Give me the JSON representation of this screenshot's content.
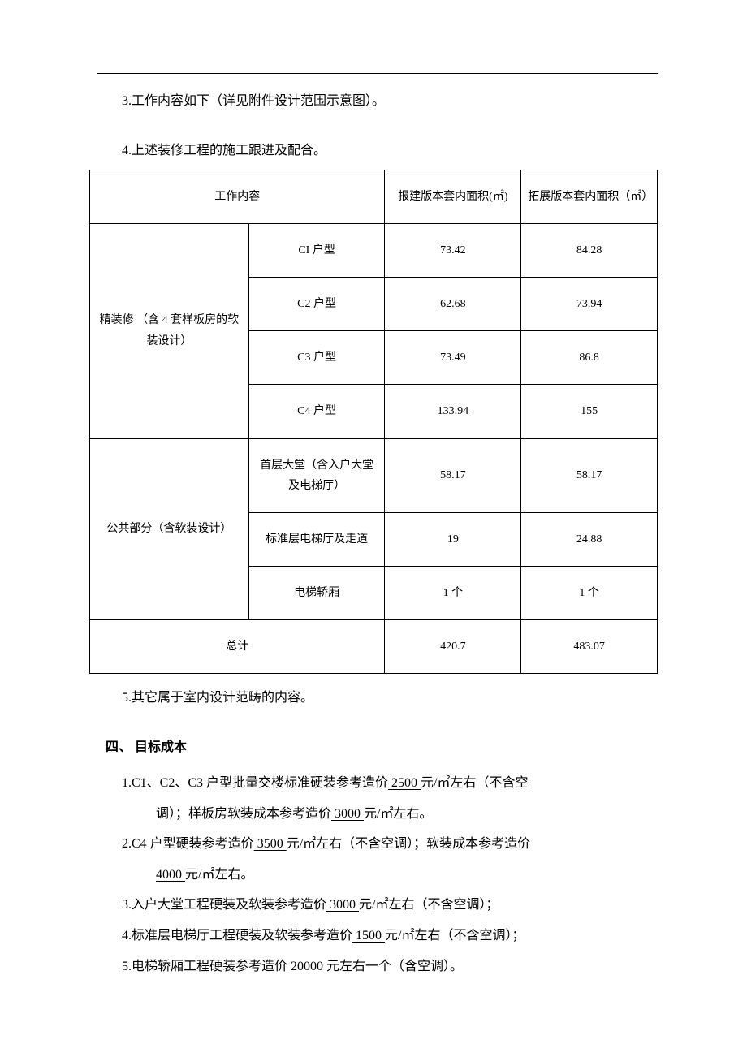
{
  "para1": "3.工作内容如下（详见附件设计范围示意图）。",
  "para2": "4.上述装修工程的施工跟进及配合。",
  "table": {
    "headers": {
      "work_content": "工作内容",
      "reported_area": "报建版本套内面积(㎡)",
      "expanded_area": "拓展版本套内面积（㎡）"
    },
    "group1_label": "精装修 （含 4 套样板房的软装设计）",
    "group1": [
      {
        "name": "CI 户型",
        "reported": "73.42",
        "expanded": "84.28"
      },
      {
        "name": "C2 户型",
        "reported": "62.68",
        "expanded": "73.94"
      },
      {
        "name": "C3 户型",
        "reported": "73.49",
        "expanded": "86.8"
      },
      {
        "name": "C4 户型",
        "reported": "133.94",
        "expanded": "155"
      }
    ],
    "group2_label": "公共部分（含软装设计）",
    "group2": [
      {
        "name": "首层大堂（含入户大堂及电梯厅）",
        "reported": "58.17",
        "expanded": "58.17"
      },
      {
        "name": "标准层电梯厅及走道",
        "reported": "19",
        "expanded": "24.88"
      },
      {
        "name": "电梯轿厢",
        "reported": "1 个",
        "expanded": "1 个"
      }
    ],
    "total_label": "总计",
    "total_reported": "420.7",
    "total_expanded": "483.07"
  },
  "para3": "5.其它属于室内设计范畴的内容。",
  "section4_heading": "四、 目标成本",
  "cost": {
    "item1_a": "1.C1、C2、C3 户型批量交楼标准硬装参考造价",
    "item1_a_val": "  2500  ",
    "item1_a_tail": "元/㎡左右（不含空",
    "item1_b": "调）；样板房软装成本参考造价",
    "item1_b_val": "   3000   ",
    "item1_b_tail": "元/㎡左右。",
    "item2": "2.C4 户型硬装参考造价",
    "item2_val": "  3500  ",
    "item2_tail": "元/㎡左右（不含空调）；软装成本参考造价",
    "item2_b_val": " 4000  ",
    "item2_b_tail": "元/㎡左右。",
    "item3": "3.入户大堂工程硬装及软装参考造价",
    "item3_val": "   3000   ",
    "item3_tail": "元/㎡左右（不含空调）；",
    "item4": "4.标准层电梯厅工程硬装及软装参考造价",
    "item4_val": "  1500  ",
    "item4_tail": "元/㎡左右（不含空调）；",
    "item5": "5.电梯轿厢工程硬装参考造价",
    "item5_val": "   20000   ",
    "item5_tail": "元左右一个（含空调）。"
  }
}
